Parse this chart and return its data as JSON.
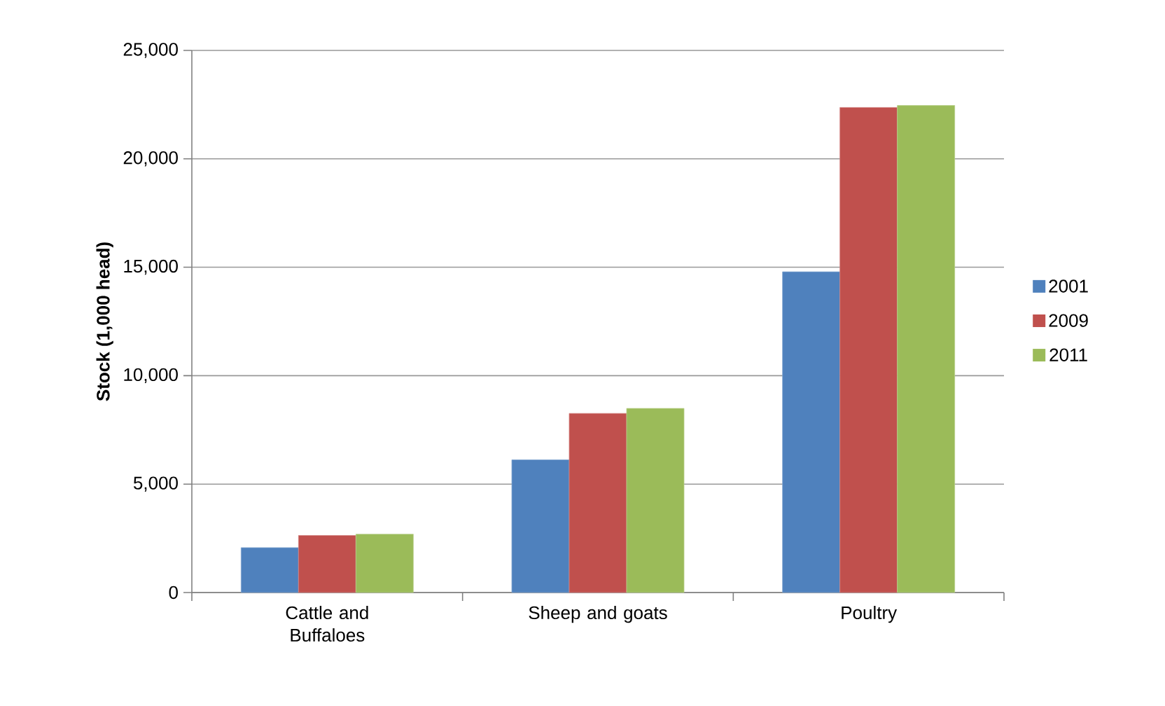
{
  "chart_data": {
    "type": "bar",
    "ylabel": "Stock (1,000 head)",
    "categories": [
      "Cattle and Buffaloes",
      "Sheep and goats",
      "Poultry"
    ],
    "series": [
      {
        "name": "2001",
        "color": "#4f81bd",
        "values": [
          2070,
          6120,
          14790
        ]
      },
      {
        "name": "2009",
        "color": "#c0504d",
        "values": [
          2630,
          8260,
          22370
        ]
      },
      {
        "name": "2011",
        "color": "#9bbb59",
        "values": [
          2690,
          8490,
          22460
        ]
      }
    ],
    "ylim": [
      0,
      25000
    ],
    "yticks": [
      {
        "value": 0,
        "label": "0"
      },
      {
        "value": 5000,
        "label": "5,000"
      },
      {
        "value": 10000,
        "label": "10,000"
      },
      {
        "value": 15000,
        "label": "15,000"
      },
      {
        "value": 20000,
        "label": "20,000"
      },
      {
        "value": 25000,
        "label": "25,000"
      }
    ],
    "grid": "y",
    "legend": "right"
  }
}
